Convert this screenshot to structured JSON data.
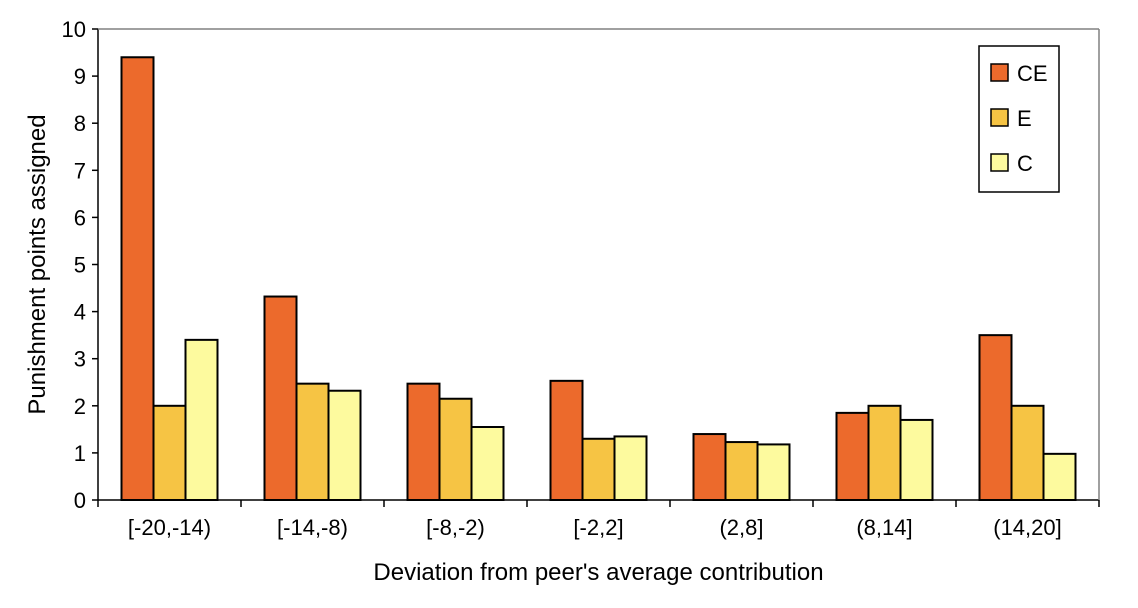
{
  "chart_data": {
    "type": "bar",
    "xlabel": "Deviation from peer's average contribution",
    "ylabel": "Punishment points assigned",
    "ylim": [
      0,
      10
    ],
    "yticks": [
      0,
      1,
      2,
      3,
      4,
      5,
      6,
      7,
      8,
      9,
      10
    ],
    "grid": false,
    "legend_position": "top-right",
    "categories": [
      "[-20,-14)",
      "[-14,-8)",
      "[-8,-2)",
      "[-2,2]",
      "(2,8]",
      "(8,14]",
      "(14,20]"
    ],
    "series": [
      {
        "name": "CE",
        "color": "#ec6a2c",
        "values": [
          9.4,
          4.32,
          2.47,
          2.53,
          1.4,
          1.85,
          3.5
        ]
      },
      {
        "name": "E",
        "color": "#f6c444",
        "values": [
          2.0,
          2.47,
          2.15,
          1.3,
          1.23,
          2.0,
          2.0
        ]
      },
      {
        "name": "C",
        "color": "#fdfa9e",
        "values": [
          3.4,
          2.32,
          1.55,
          1.35,
          1.18,
          1.7,
          0.98
        ]
      }
    ]
  }
}
